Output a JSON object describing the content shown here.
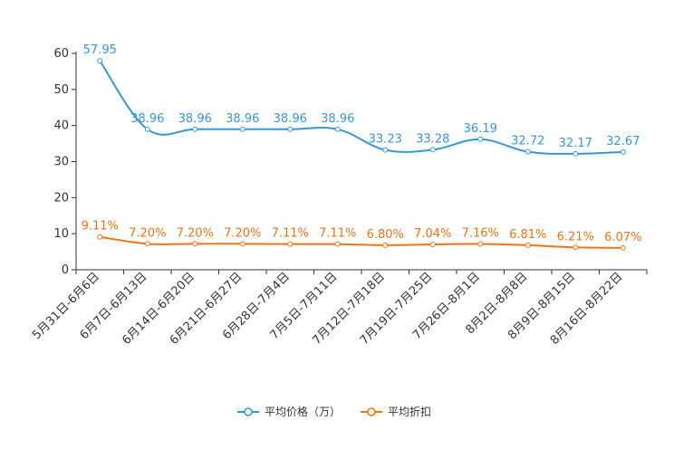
{
  "chart_data": {
    "type": "line",
    "title": "",
    "xlabel": "",
    "ylabel": "",
    "ylim": [
      0,
      60
    ],
    "yticks": [
      0,
      10,
      20,
      30,
      40,
      50,
      60
    ],
    "grid": false,
    "legend_position": "bottom-center",
    "categories": [
      "5月31日-6月6日",
      "6月7日-6月13日",
      "6月14日-6月20日",
      "6月21日-6月27日",
      "6月28日-7月4日",
      "7月5日-7月11日",
      "7月12日-7月18日",
      "7月19日-7月25日",
      "7月26日-8月1日",
      "8月2日-8月8日",
      "8月9日-8月15日",
      "8月16日-8月22日"
    ],
    "series": [
      {
        "name": "平均价格（万）",
        "color": "#3398DB",
        "values": [
          57.95,
          38.96,
          38.96,
          38.96,
          38.96,
          38.96,
          33.23,
          33.28,
          36.19,
          32.72,
          32.17,
          32.67
        ],
        "labels": [
          "57.95",
          "38.96",
          "38.96",
          "38.96",
          "38.96",
          "38.96",
          "33.23",
          "33.28",
          "36.19",
          "32.72",
          "32.17",
          "32.67"
        ]
      },
      {
        "name": "平均折扣",
        "color": "#F5720F",
        "values": [
          9.11,
          7.2,
          7.2,
          7.2,
          7.11,
          7.11,
          6.8,
          7.04,
          7.16,
          6.81,
          6.21,
          6.07
        ],
        "labels": [
          "9.11%",
          "7.20%",
          "7.20%",
          "7.20%",
          "7.11%",
          "7.11%",
          "6.80%",
          "7.04%",
          "7.16%",
          "6.81%",
          "6.21%",
          "6.07%"
        ]
      }
    ]
  }
}
